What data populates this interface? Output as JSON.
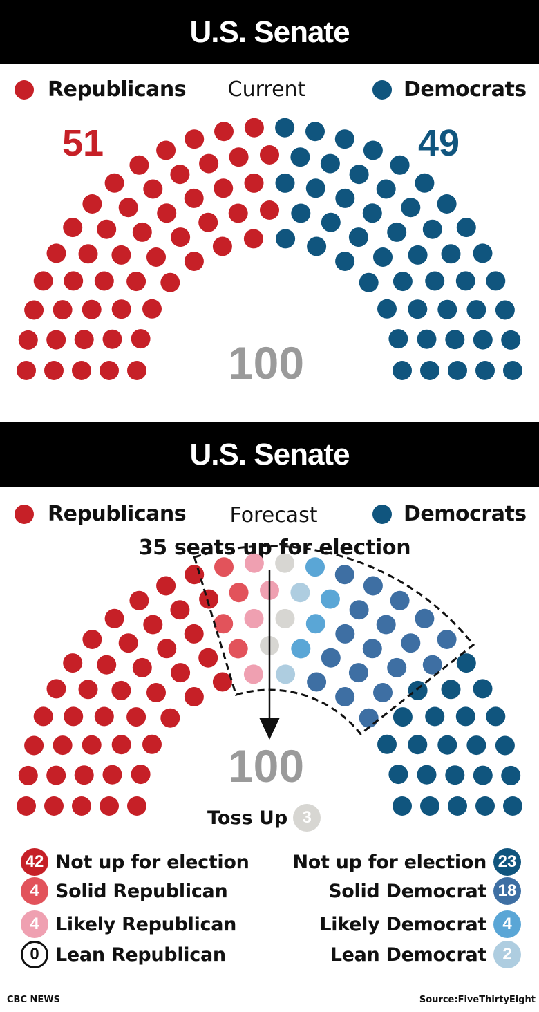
{
  "colors": {
    "republican": "#c62027",
    "democrat": "#10557e",
    "solid_republican": "#e2535b",
    "likely_republican": "#efa0b1",
    "lean_republican": "#ffffff",
    "toss_up": "#d7d6d2",
    "lean_democrat": "#aecde0",
    "likely_democrat": "#5aa6d6",
    "solid_democrat": "#3e6fa3",
    "total_gray": "#9a9a9a"
  },
  "current": {
    "title": "U.S. Senate",
    "republicans_label": "Republicans",
    "democrats_label": "Democrats",
    "mode_label": "Current",
    "republican_seats": "51",
    "democrat_seats": "49",
    "total": "100"
  },
  "forecast": {
    "title": "U.S. Senate",
    "republicans_label": "Republicans",
    "democrats_label": "Democrats",
    "mode_label": "Forecast",
    "subtitle": "35 seats up for election",
    "total": "100",
    "toss_up_label": "Toss Up",
    "toss_up_count": "3",
    "legend_left": [
      {
        "count": "42",
        "label": "Not up for election",
        "key": "republican"
      },
      {
        "count": "4",
        "label": "Solid Republican",
        "key": "solid_republican"
      },
      {
        "count": "4",
        "label": "Likely Republican",
        "key": "likely_republican"
      },
      {
        "count": "0",
        "label": "Lean Republican",
        "key": "lean_republican"
      }
    ],
    "legend_right": [
      {
        "count": "23",
        "label": "Not up for election",
        "key": "democrat"
      },
      {
        "count": "18",
        "label": "Solid Democrat",
        "key": "solid_democrat"
      },
      {
        "count": "4",
        "label": "Likely Democrat",
        "key": "likely_democrat"
      },
      {
        "count": "2",
        "label": "Lean Democrat",
        "key": "lean_democrat"
      }
    ]
  },
  "chart_data": [
    {
      "type": "parliament",
      "title": "U.S. Senate",
      "subtitle": "Current",
      "total_seats": 100,
      "series": [
        {
          "name": "Republicans",
          "value": 51
        },
        {
          "name": "Democrats",
          "value": 49
        }
      ]
    },
    {
      "type": "parliament",
      "title": "U.S. Senate",
      "subtitle": "Forecast",
      "total_seats": 100,
      "seats_up_for_election": 35,
      "series": [
        {
          "name": "Not up for election",
          "party": "Republicans",
          "value": 42
        },
        {
          "name": "Solid Republican",
          "value": 4
        },
        {
          "name": "Likely Republican",
          "value": 4
        },
        {
          "name": "Lean Republican",
          "value": 0
        },
        {
          "name": "Toss Up",
          "value": 3
        },
        {
          "name": "Lean Democrat",
          "value": 2
        },
        {
          "name": "Likely Democrat",
          "value": 4
        },
        {
          "name": "Solid Democrat",
          "value": 18
        },
        {
          "name": "Not up for election",
          "party": "Democrats",
          "value": 23
        }
      ]
    }
  ],
  "footer": {
    "credit": "CBC NEWS",
    "source": "Source:FiveThirtyEight"
  }
}
